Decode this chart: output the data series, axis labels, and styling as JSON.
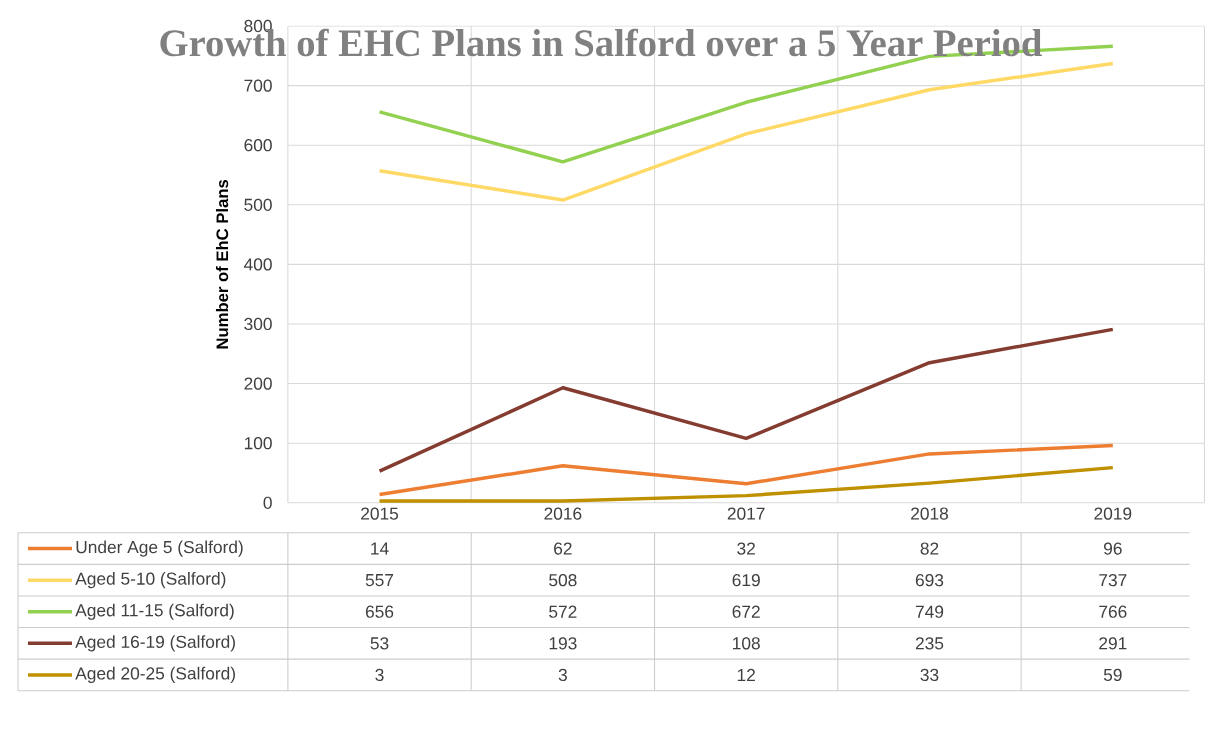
{
  "chart_data": {
    "type": "line",
    "title": "Growth of EHC Plans in Salford over a 5 Year Period",
    "ylabel": "Number of EhC Plans",
    "categories": [
      "2015",
      "2016",
      "2017",
      "2018",
      "2019"
    ],
    "series": [
      {
        "name": "Under Age 5  (Salford)",
        "color": "#ed7d31",
        "values": [
          14,
          62,
          32,
          82,
          96
        ]
      },
      {
        "name": "Aged 5-10  (Salford)",
        "color": "#ffd966",
        "values": [
          557,
          508,
          619,
          693,
          737
        ]
      },
      {
        "name": "Aged 11-15  (Salford)",
        "color": "#92d050",
        "values": [
          656,
          572,
          672,
          749,
          766
        ]
      },
      {
        "name": "Aged 16-19 (Salford)",
        "color": "#843c30",
        "values": [
          53,
          193,
          108,
          235,
          291
        ]
      },
      {
        "name": "Aged 20-25 (Salford)",
        "color": "#bf9000",
        "values": [
          3,
          3,
          12,
          33,
          59
        ]
      }
    ],
    "ylim": [
      0,
      800
    ],
    "yticks": [
      0,
      100,
      200,
      300,
      400,
      500,
      600,
      700,
      800
    ],
    "grid": true,
    "legend": "bottom",
    "data_labels": true,
    "marker": "none",
    "line_style": "solid"
  }
}
